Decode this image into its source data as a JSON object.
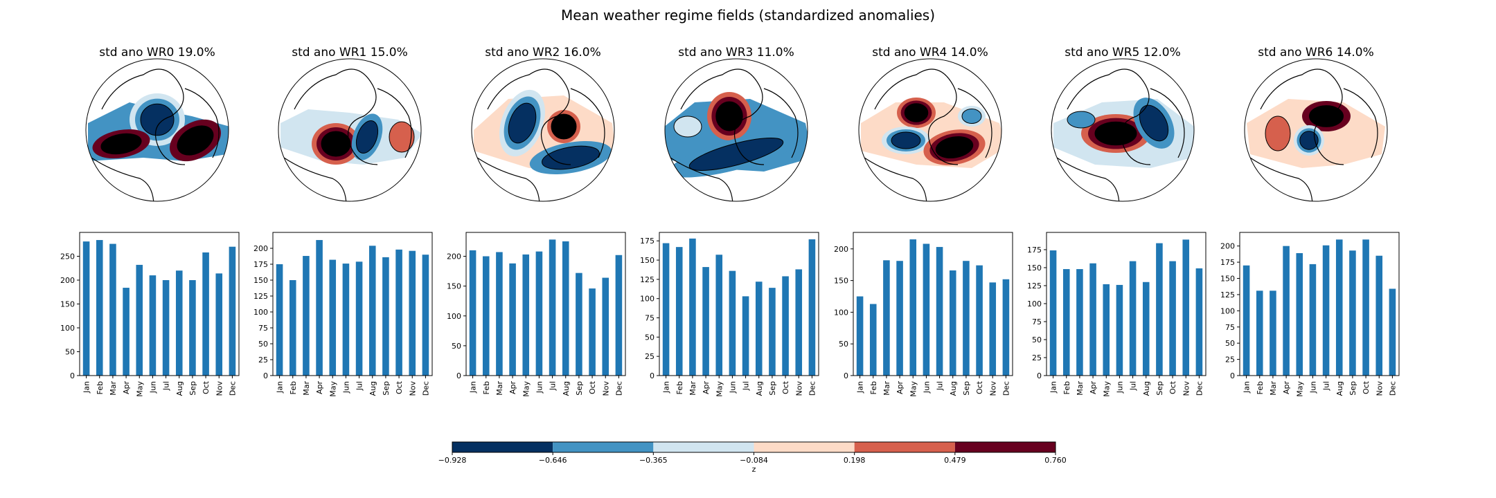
{
  "figure": {
    "suptitle": "Mean weather regime fields (standardized anomalies)"
  },
  "colorbar": {
    "label": "z",
    "ticks": [
      "−0.928",
      "−0.646",
      "−0.365",
      "−0.084",
      "0.198",
      "0.479",
      "0.760"
    ],
    "colors": [
      "#053061",
      "#4393c3",
      "#d1e5f0",
      "#fddbc7",
      "#d6604d",
      "#67001f"
    ]
  },
  "chart_data": [
    {
      "type": "bar",
      "map_title": "std ano WR0 19.0%",
      "categories": [
        "Jan",
        "Feb",
        "Mar",
        "Apr",
        "May",
        "Jun",
        "Jul",
        "Aug",
        "Sep",
        "Oct",
        "Nov",
        "Dec"
      ],
      "values": [
        281,
        284,
        276,
        184,
        232,
        210,
        200,
        220,
        200,
        258,
        214,
        270
      ],
      "ylim": [
        0,
        300
      ],
      "yticks": [
        0,
        50,
        100,
        150,
        200,
        250
      ]
    },
    {
      "type": "bar",
      "map_title": "std ano WR1 15.0%",
      "categories": [
        "Jan",
        "Feb",
        "Mar",
        "Apr",
        "May",
        "Jun",
        "Jul",
        "Aug",
        "Sep",
        "Oct",
        "Nov",
        "Dec"
      ],
      "values": [
        175,
        150,
        188,
        213,
        182,
        176,
        179,
        204,
        186,
        198,
        196,
        190
      ],
      "ylim": [
        0,
        225
      ],
      "yticks": [
        0,
        25,
        50,
        75,
        100,
        125,
        150,
        175,
        200
      ]
    },
    {
      "type": "bar",
      "map_title": "std ano WR2 16.0%",
      "categories": [
        "Jan",
        "Feb",
        "Mar",
        "Apr",
        "May",
        "Jun",
        "Jul",
        "Aug",
        "Sep",
        "Oct",
        "Nov",
        "Dec"
      ],
      "values": [
        210,
        200,
        207,
        188,
        203,
        208,
        228,
        225,
        172,
        146,
        164,
        202
      ],
      "ylim": [
        0,
        240
      ],
      "yticks": [
        0,
        50,
        100,
        150,
        200
      ]
    },
    {
      "type": "bar",
      "map_title": "std ano WR3 11.0%",
      "categories": [
        "Jan",
        "Feb",
        "Mar",
        "Apr",
        "May",
        "Jun",
        "Jul",
        "Aug",
        "Sep",
        "Oct",
        "Nov",
        "Dec"
      ],
      "values": [
        172,
        167,
        178,
        141,
        157,
        136,
        103,
        122,
        114,
        129,
        138,
        177
      ],
      "ylim": [
        0,
        186
      ],
      "yticks": [
        0,
        25,
        50,
        75,
        100,
        125,
        150,
        175
      ]
    },
    {
      "type": "bar",
      "map_title": "std ano WR4 14.0%",
      "categories": [
        "Jan",
        "Feb",
        "Mar",
        "Apr",
        "May",
        "Jun",
        "Jul",
        "Aug",
        "Sep",
        "Oct",
        "Nov",
        "Dec"
      ],
      "values": [
        125,
        113,
        182,
        181,
        215,
        208,
        203,
        166,
        181,
        174,
        147,
        152
      ],
      "ylim": [
        0,
        226
      ],
      "yticks": [
        0,
        50,
        100,
        150,
        200
      ]
    },
    {
      "type": "bar",
      "map_title": "std ano WR5 12.0%",
      "categories": [
        "Jan",
        "Feb",
        "Mar",
        "Apr",
        "May",
        "Jun",
        "Jul",
        "Aug",
        "Sep",
        "Oct",
        "Nov",
        "Dec"
      ],
      "values": [
        174,
        148,
        148,
        156,
        127,
        126,
        159,
        130,
        184,
        159,
        189,
        149
      ],
      "ylim": [
        0,
        199
      ],
      "yticks": [
        0,
        25,
        50,
        75,
        100,
        125,
        150,
        175
      ]
    },
    {
      "type": "bar",
      "map_title": "std ano WR6 14.0%",
      "categories": [
        "Jan",
        "Feb",
        "Mar",
        "Apr",
        "May",
        "Jun",
        "Jul",
        "Aug",
        "Sep",
        "Oct",
        "Nov",
        "Dec"
      ],
      "values": [
        170,
        131,
        131,
        200,
        189,
        172,
        201,
        210,
        193,
        210,
        185,
        134
      ],
      "ylim": [
        0,
        221
      ],
      "yticks": [
        0,
        25,
        50,
        75,
        100,
        125,
        150,
        175,
        200
      ]
    }
  ]
}
